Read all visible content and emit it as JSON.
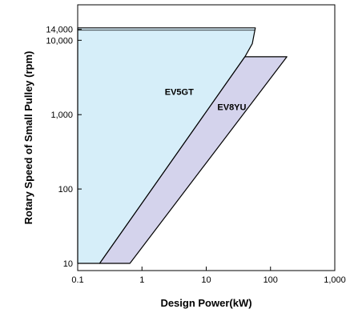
{
  "chart_data": {
    "type": "area",
    "xlabel": "Design Power(kW)",
    "ylabel": "Rotary Speed of Small Pulley (rpm)",
    "x_scale": "log",
    "y_scale": "log",
    "xlim": [
      0.1,
      1000
    ],
    "ylim": [
      8,
      30000
    ],
    "x_ticks": [
      {
        "value": 0.1,
        "label": "0.1"
      },
      {
        "value": 1,
        "label": "1"
      },
      {
        "value": 10,
        "label": "10"
      },
      {
        "value": 100,
        "label": "100"
      },
      {
        "value": 1000,
        "label": "1,000"
      }
    ],
    "y_ticks": [
      {
        "value": 10,
        "label": "10"
      },
      {
        "value": 100,
        "label": "100"
      },
      {
        "value": 1000,
        "label": "1,000"
      },
      {
        "value": 10000,
        "label": "10,000"
      },
      {
        "value": 14000,
        "label": "14,000"
      }
    ],
    "grid": false,
    "series": [
      {
        "name": "EV5GT",
        "color": "#d6eef9",
        "polygon": [
          {
            "x": 0.1,
            "y": 14700
          },
          {
            "x": 58,
            "y": 14700
          },
          {
            "x": 52,
            "y": 9000
          },
          {
            "x": 40,
            "y": 6000
          },
          {
            "x": 0.22,
            "y": 10
          },
          {
            "x": 0.1,
            "y": 10
          }
        ]
      },
      {
        "name": "EV8YU",
        "color": "#d4d3ec",
        "polygon": [
          {
            "x": 40,
            "y": 6000
          },
          {
            "x": 180,
            "y": 6000
          },
          {
            "x": 0.65,
            "y": 10
          },
          {
            "x": 0.22,
            "y": 10
          }
        ]
      }
    ],
    "labels": [
      {
        "text": "EV5GT",
        "x": 3.8,
        "y": 1850
      },
      {
        "text": "EV8YU",
        "x": 25,
        "y": 1150
      }
    ]
  }
}
